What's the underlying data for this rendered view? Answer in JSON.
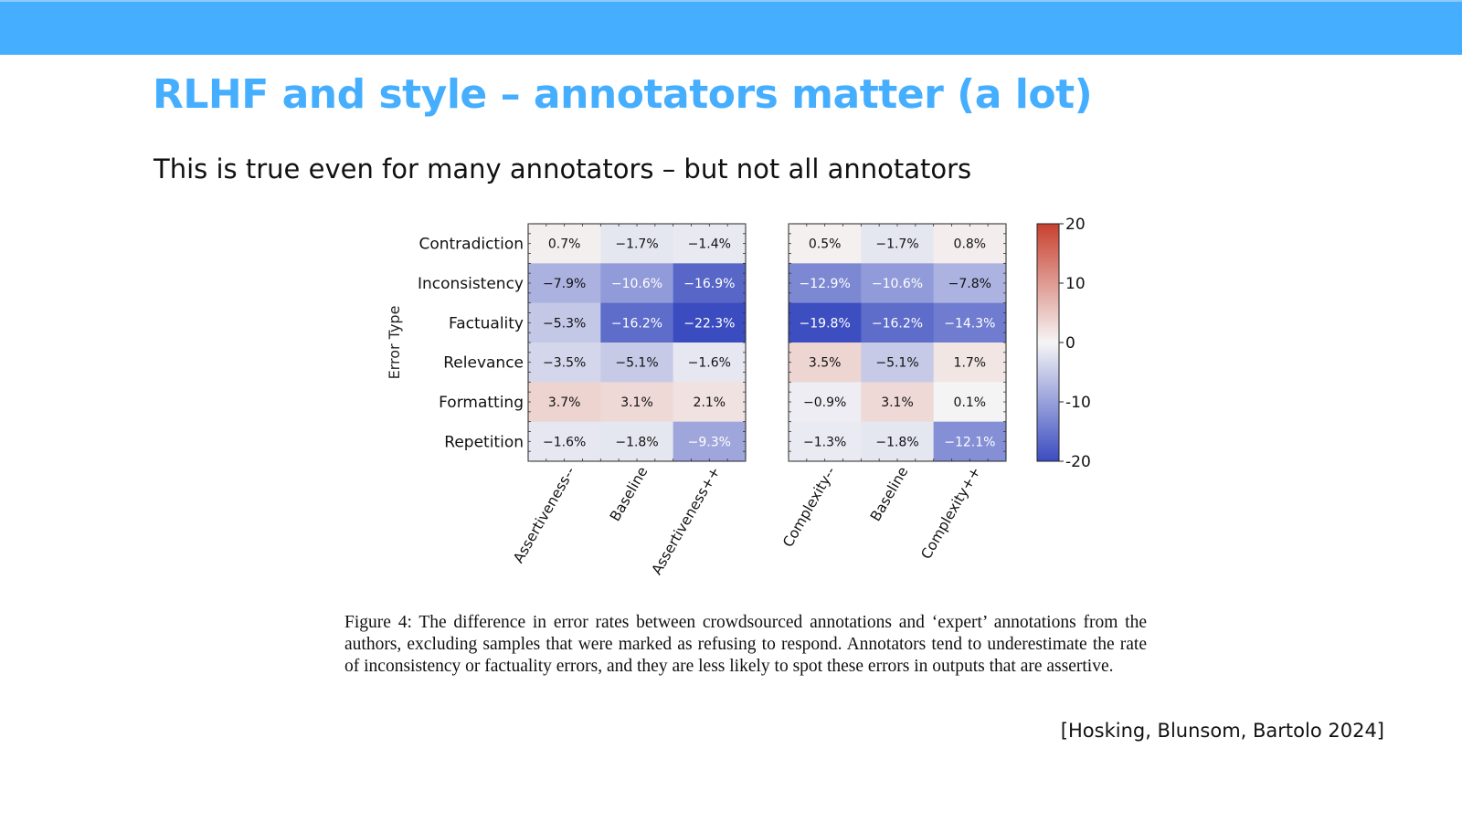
{
  "slide": {
    "title": "RLHF and style – annotators matter (a lot)",
    "subtitle": "This is true even for many annotators – but not all annotators",
    "caption": "Figure 4: The difference in error rates between crowdsourced annotations and ‘expert’ annotations from the authors, excluding samples that were marked as refusing to respond. Annotators tend to underestimate the rate of inconsistency or factuality errors, and they are less likely to spot these errors in outputs that are assertive.",
    "citation": "[Hosking, Blunsom, Bartolo 2024]"
  },
  "colors": {
    "header_bar": "#45aeff",
    "title": "#45aeff",
    "cmap_low": "#3b4cc0",
    "cmap_mid": "#f5f5f5",
    "cmap_high": "#c8402f"
  },
  "chart_data": [
    {
      "type": "heatmap",
      "ylabel": "Error Type",
      "rows": [
        "Contradiction",
        "Inconsistency",
        "Factuality",
        "Relevance",
        "Formatting",
        "Repetition"
      ],
      "columns": [
        "Assertiveness--",
        "Baseline",
        "Assertiveness++"
      ],
      "values": [
        [
          0.7,
          -1.7,
          -1.4
        ],
        [
          -7.9,
          -10.6,
          -16.9
        ],
        [
          -5.3,
          -16.2,
          -22.3
        ],
        [
          -3.5,
          -5.1,
          -1.6
        ],
        [
          3.7,
          3.1,
          2.1
        ],
        [
          -1.6,
          -1.8,
          -9.3
        ]
      ],
      "value_format": "percent",
      "color_range": [
        -20,
        20
      ]
    },
    {
      "type": "heatmap",
      "rows": [
        "Contradiction",
        "Inconsistency",
        "Factuality",
        "Relevance",
        "Formatting",
        "Repetition"
      ],
      "columns": [
        "Complexity--",
        "Baseline",
        "Complexity++"
      ],
      "values": [
        [
          0.5,
          -1.7,
          0.8
        ],
        [
          -12.9,
          -10.6,
          -7.8
        ],
        [
          -19.8,
          -16.2,
          -14.3
        ],
        [
          3.5,
          -5.1,
          1.7
        ],
        [
          -0.9,
          3.1,
          0.1
        ],
        [
          -1.3,
          -1.8,
          -12.1
        ]
      ],
      "value_format": "percent",
      "color_range": [
        -20,
        20
      ]
    }
  ],
  "colorbar": {
    "range": [
      -20,
      20
    ],
    "ticks": [
      20,
      10,
      0,
      -10,
      -20
    ],
    "tick_labels": [
      "20",
      "10",
      "0",
      "-10",
      "-20"
    ]
  }
}
